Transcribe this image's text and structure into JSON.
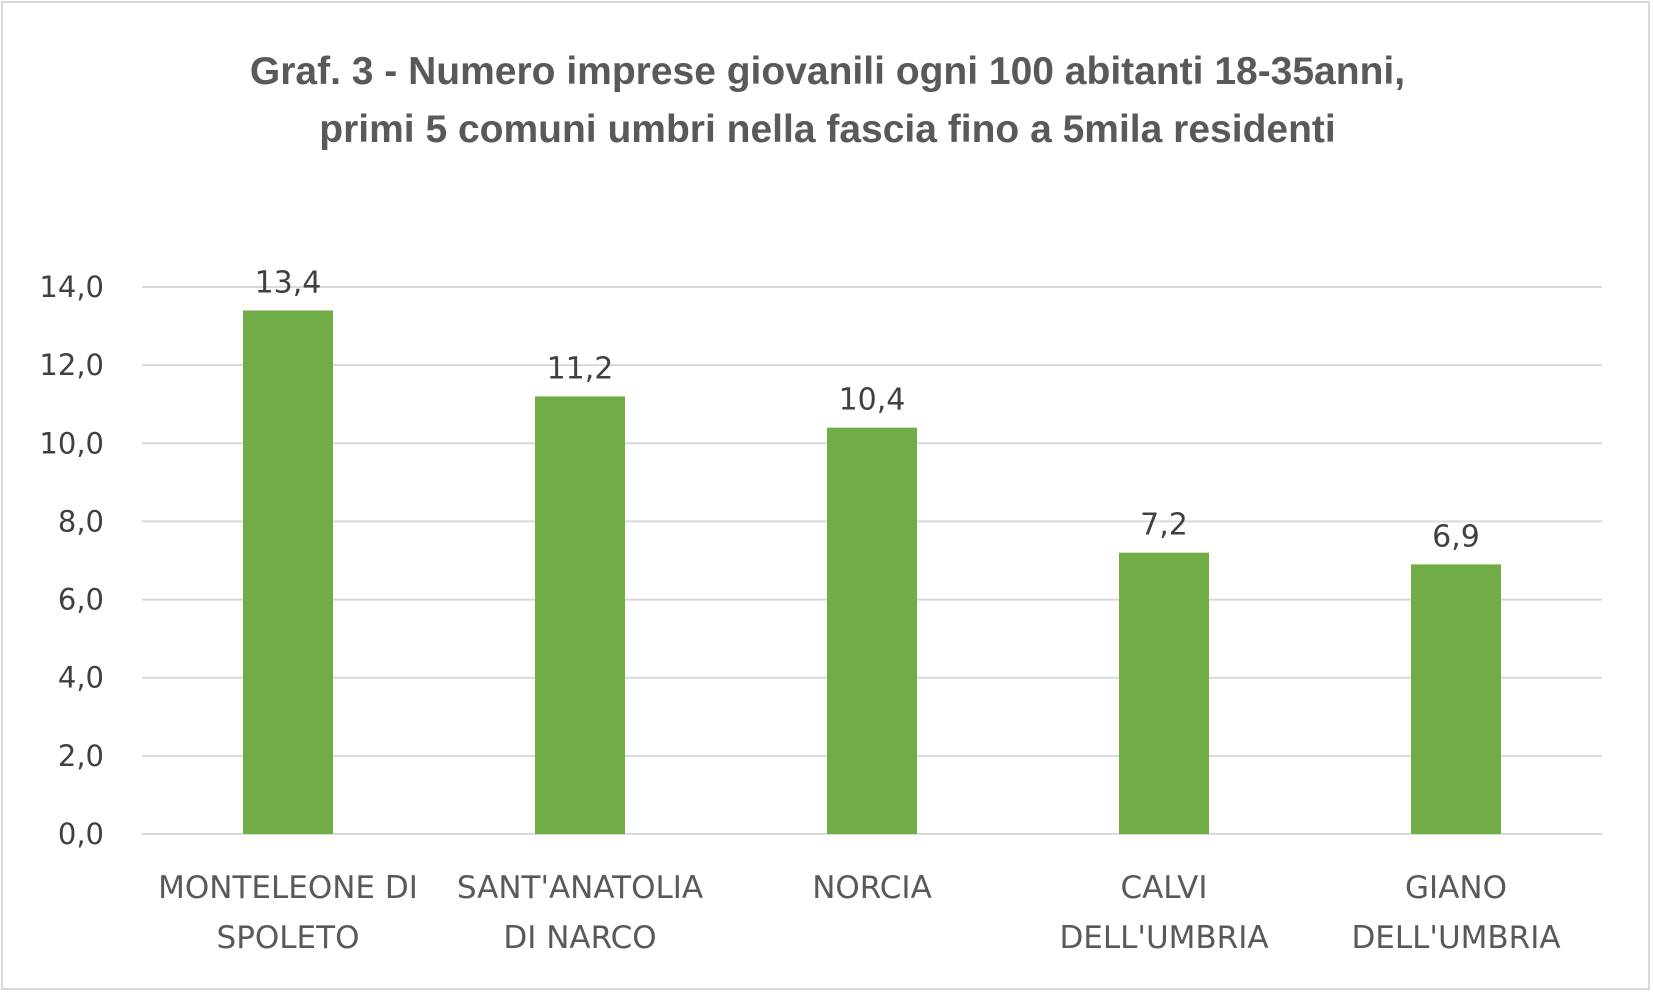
{
  "chart_data": {
    "type": "bar",
    "title_line1": "Graf. 3 - Numero imprese giovanili ogni 100 abitanti 18-35anni,",
    "title_line2": "primi 5 comuni umbri nella fascia fino a 5mila residenti",
    "categories": [
      [
        "MONTELEONE DI",
        "SPOLETO"
      ],
      [
        "SANT'ANATOLIA",
        "DI NARCO"
      ],
      [
        "NORCIA"
      ],
      [
        "CALVI",
        "DELL'UMBRIA"
      ],
      [
        "GIANO",
        "DELL'UMBRIA"
      ]
    ],
    "values": [
      13.4,
      11.2,
      10.4,
      7.2,
      6.9
    ],
    "data_labels": [
      "13,4",
      "11,2",
      "10,4",
      "7,2",
      "6,9"
    ],
    "y_ticks": [
      0,
      2,
      4,
      6,
      8,
      10,
      12,
      14
    ],
    "y_tick_labels": [
      "0,0",
      "2,0",
      "4,0",
      "6,0",
      "8,0",
      "10,0",
      "12,0",
      "14,0"
    ],
    "ylim": [
      0,
      14
    ],
    "grid": true,
    "legend": "none",
    "colors": {
      "bar": "#70ad47",
      "grid": "#d9d9d9",
      "text": "#404040",
      "title": "#595959"
    }
  }
}
